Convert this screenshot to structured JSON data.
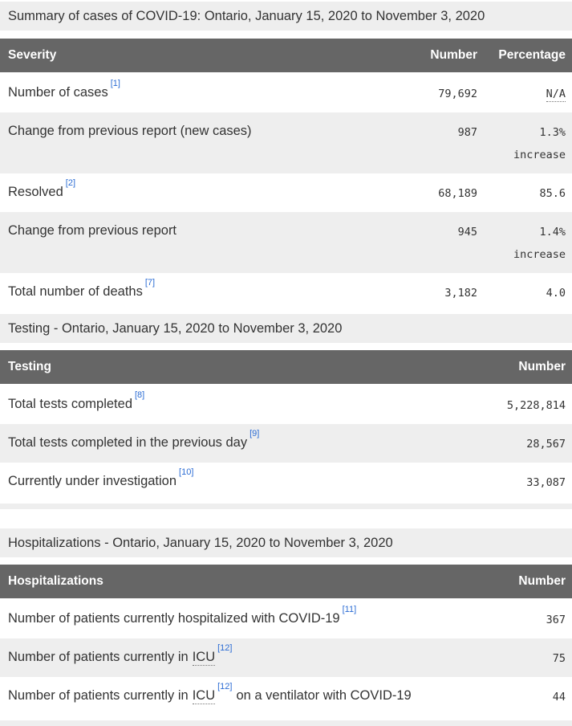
{
  "colors": {
    "table_header_bg": "#666666",
    "table_header_text": "#ffffff",
    "caption_bg": "#eeeeee",
    "row_stripe_bg": "#eeeeee",
    "body_text": "#333333",
    "link": "#2b6cd4",
    "divider": "#eeeeee"
  },
  "tables": [
    {
      "caption": "Summary of cases of COVID-19: Ontario, January 15, 2020 to November 3, 2020",
      "columns": [
        "Severity",
        "Number",
        "Percentage"
      ],
      "rows": [
        {
          "label": "Number of cases",
          "ref": "[1]",
          "number": "79,692",
          "pct": "N/A",
          "pct_note": ""
        },
        {
          "label": "Change from previous report (new cases)",
          "ref": "",
          "number": "987",
          "pct": "1.3%",
          "pct_note": "increase"
        },
        {
          "label": "Resolved",
          "ref": "[2]",
          "number": "68,189",
          "pct": "85.6",
          "pct_note": ""
        },
        {
          "label": "Change from previous report",
          "ref": "",
          "number": "945",
          "pct": "1.4%",
          "pct_note": "increase"
        },
        {
          "label": "Total number of deaths",
          "ref": "[7]",
          "number": "3,182",
          "pct": "4.0",
          "pct_note": ""
        }
      ]
    },
    {
      "caption": "Testing - Ontario, January 15, 2020 to November 3, 2020",
      "columns": [
        "Testing",
        "Number"
      ],
      "rows": [
        {
          "label": "Total tests completed",
          "ref": "[8]",
          "number": "5,228,814"
        },
        {
          "label": "Total tests completed in the previous day",
          "ref": "[9]",
          "number": "28,567"
        },
        {
          "label": "Currently under investigation",
          "ref": "[10]",
          "number": "33,087"
        }
      ]
    },
    {
      "caption": "Hospitalizations - Ontario, January 15, 2020 to November 3, 2020",
      "columns": [
        "Hospitalizations",
        "Number"
      ],
      "rows": [
        {
          "label": "Number of patients currently hospitalized with COVID-19",
          "abbr": "",
          "ref": "[11]",
          "label_suffix": "",
          "number": "367"
        },
        {
          "label": "Number of patients currently in",
          "abbr": "ICU",
          "ref": "[12]",
          "label_suffix": "",
          "number": "75"
        },
        {
          "label": "Number of patients currently in",
          "abbr": "ICU",
          "ref": "[12]",
          "label_suffix": "on a ventilator with COVID-19",
          "number": "44"
        }
      ]
    }
  ]
}
